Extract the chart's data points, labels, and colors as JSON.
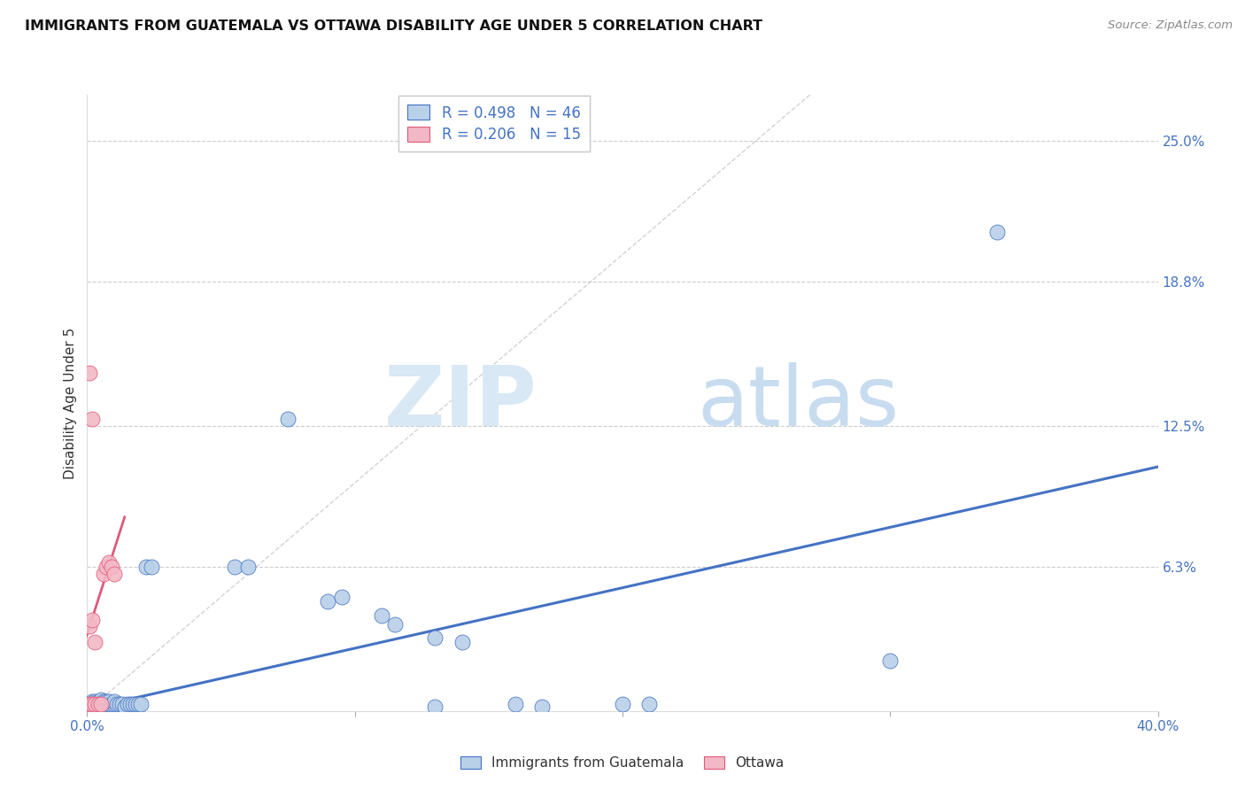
{
  "title": "IMMIGRANTS FROM GUATEMALA VS OTTAWA DISABILITY AGE UNDER 5 CORRELATION CHART",
  "source": "Source: ZipAtlas.com",
  "ylabel": "Disability Age Under 5",
  "ytick_labels": [
    "25.0%",
    "18.8%",
    "12.5%",
    "6.3%"
  ],
  "ytick_values": [
    0.25,
    0.188,
    0.125,
    0.063
  ],
  "xlim": [
    0.0,
    0.4
  ],
  "ylim": [
    0.0,
    0.27
  ],
  "legend_blue_r": "R = 0.498",
  "legend_blue_n": "N = 46",
  "legend_pink_r": "R = 0.206",
  "legend_pink_n": "N = 15",
  "legend_label_blue": "Immigrants from Guatemala",
  "legend_label_pink": "Ottawa",
  "color_blue": "#B8D0E8",
  "color_pink": "#F2B8C6",
  "line_color_blue": "#4472C4",
  "line_color_pink": "#E05878",
  "line_color_diagonal": "#C8C8C8",
  "watermark_zip": "ZIP",
  "watermark_atlas": "atlas",
  "blue_points": [
    [
      0.001,
      0.003
    ],
    [
      0.002,
      0.003
    ],
    [
      0.002,
      0.004
    ],
    [
      0.003,
      0.003
    ],
    [
      0.003,
      0.004
    ],
    [
      0.004,
      0.003
    ],
    [
      0.004,
      0.004
    ],
    [
      0.005,
      0.003
    ],
    [
      0.005,
      0.005
    ],
    [
      0.006,
      0.003
    ],
    [
      0.006,
      0.004
    ],
    [
      0.007,
      0.003
    ],
    [
      0.007,
      0.004
    ],
    [
      0.008,
      0.003
    ],
    [
      0.008,
      0.004
    ],
    [
      0.009,
      0.003
    ],
    [
      0.01,
      0.003
    ],
    [
      0.01,
      0.004
    ],
    [
      0.011,
      0.003
    ],
    [
      0.012,
      0.003
    ],
    [
      0.013,
      0.003
    ],
    [
      0.014,
      0.002
    ],
    [
      0.015,
      0.003
    ],
    [
      0.016,
      0.003
    ],
    [
      0.017,
      0.003
    ],
    [
      0.018,
      0.003
    ],
    [
      0.019,
      0.003
    ],
    [
      0.02,
      0.003
    ],
    [
      0.022,
      0.063
    ],
    [
      0.024,
      0.063
    ],
    [
      0.055,
      0.063
    ],
    [
      0.06,
      0.063
    ],
    [
      0.075,
      0.128
    ],
    [
      0.09,
      0.048
    ],
    [
      0.095,
      0.05
    ],
    [
      0.11,
      0.042
    ],
    [
      0.115,
      0.038
    ],
    [
      0.13,
      0.032
    ],
    [
      0.14,
      0.03
    ],
    [
      0.16,
      0.003
    ],
    [
      0.17,
      0.002
    ],
    [
      0.2,
      0.003
    ],
    [
      0.21,
      0.003
    ],
    [
      0.3,
      0.022
    ],
    [
      0.34,
      0.21
    ],
    [
      0.13,
      0.002
    ]
  ],
  "pink_points": [
    [
      0.001,
      0.003
    ],
    [
      0.002,
      0.003
    ],
    [
      0.003,
      0.003
    ],
    [
      0.004,
      0.003
    ],
    [
      0.005,
      0.003
    ],
    [
      0.001,
      0.037
    ],
    [
      0.002,
      0.04
    ],
    [
      0.006,
      0.06
    ],
    [
      0.007,
      0.063
    ],
    [
      0.008,
      0.065
    ],
    [
      0.009,
      0.063
    ],
    [
      0.01,
      0.06
    ],
    [
      0.001,
      0.148
    ],
    [
      0.002,
      0.128
    ],
    [
      0.003,
      0.03
    ]
  ],
  "blue_line_x": [
    0.0,
    0.4
  ],
  "blue_line_y": [
    0.001,
    0.107
  ],
  "pink_line_x": [
    -0.001,
    0.014
  ],
  "pink_line_y": [
    0.03,
    0.085
  ],
  "diagonal_line_x": [
    0.0,
    0.27
  ],
  "diagonal_line_y": [
    0.0,
    0.27
  ]
}
